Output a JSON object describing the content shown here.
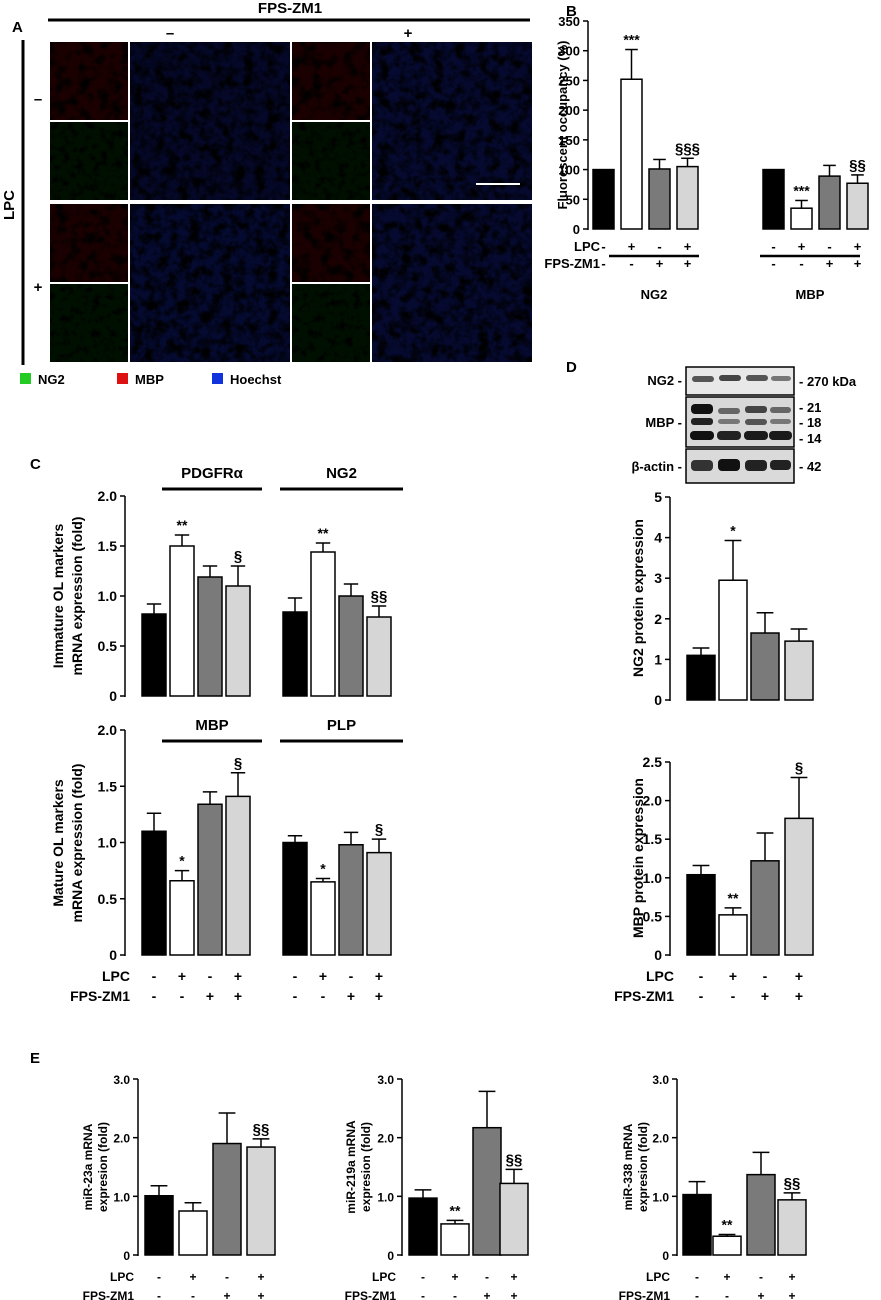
{
  "colors": {
    "g1": "#000000",
    "g2": "#ffffff",
    "g3": "#7a7a7a",
    "g4": "#d6d6d6"
  },
  "conditions": {
    "lpc_label": "LPC",
    "fps_label": "FPS-ZM1",
    "lpc": [
      "-",
      "+",
      "-",
      "+"
    ],
    "fps": [
      "-",
      "-",
      "+",
      "+"
    ]
  },
  "panelA": {
    "letter": "A",
    "treatment": "FPS-ZM1",
    "minus": "–",
    "plus": "+",
    "row_group": "LPC",
    "row_minus": "–",
    "row_plus": "+",
    "legend": [
      {
        "label": "NG2",
        "color": "#22cc22"
      },
      {
        "label": "MBP",
        "color": "#dd1111"
      },
      {
        "label": "Hoechst",
        "color": "#1133dd"
      }
    ]
  },
  "panelB": {
    "letter": "B"
  },
  "panelC": {
    "letter": "C"
  },
  "panelD": {
    "letter": "D",
    "blot_rows": [
      {
        "label": "NG2 -"
      },
      {
        "label": "MBP -"
      },
      {
        "label": "β-actin -"
      }
    ],
    "mw": [
      "- 270 kDa",
      "- 21",
      "- 18",
      "- 14",
      "- 42"
    ]
  },
  "panelE": {
    "letter": "E"
  },
  "chart_data": [
    {
      "id": "B",
      "type": "bar",
      "ylabel": "Fluorescent occupancy (%)",
      "ylim": [
        0,
        350
      ],
      "yticks": [
        "0",
        "50",
        "100",
        "150",
        "200",
        "250",
        "300",
        "350"
      ],
      "groups": [
        {
          "name": "NG2",
          "values": [
            100,
            252,
            101,
            105
          ],
          "errors": [
            0,
            50,
            16,
            14
          ],
          "marks": [
            "",
            "***",
            "",
            "§§§"
          ]
        },
        {
          "name": "MBP",
          "values": [
            100,
            35,
            89,
            77
          ],
          "errors": [
            0,
            13,
            18,
            14
          ],
          "marks": [
            "",
            "***",
            "",
            "§§"
          ]
        }
      ]
    },
    {
      "id": "C1",
      "type": "bar",
      "ylabel": [
        "Immature OL markers",
        "mRNA expression (fold)"
      ],
      "ylim": [
        0,
        2.0
      ],
      "yticks": [
        "0",
        "0.5",
        "1.0",
        "1.5",
        "2.0"
      ],
      "groups": [
        {
          "name": "PDGFRα",
          "values": [
            0.82,
            1.5,
            1.19,
            1.1
          ],
          "errors": [
            0.1,
            0.11,
            0.11,
            0.2
          ],
          "marks": [
            "",
            "**",
            "",
            "§"
          ]
        },
        {
          "name": "NG2",
          "values": [
            0.84,
            1.44,
            1.0,
            0.79
          ],
          "errors": [
            0.14,
            0.09,
            0.12,
            0.11
          ],
          "marks": [
            "",
            "**",
            "",
            "§§"
          ]
        }
      ]
    },
    {
      "id": "C2",
      "type": "bar",
      "ylabel": [
        "Mature OL markers",
        "mRNA expression (fold)"
      ],
      "ylim": [
        0,
        2.0
      ],
      "yticks": [
        "0",
        "0.5",
        "1.0",
        "1.5",
        "2.0"
      ],
      "groups": [
        {
          "name": "MBP",
          "values": [
            1.1,
            0.66,
            1.34,
            1.41
          ],
          "errors": [
            0.16,
            0.09,
            0.11,
            0.21
          ],
          "marks": [
            "",
            "*",
            "",
            "§"
          ]
        },
        {
          "name": "PLP",
          "values": [
            1.0,
            0.65,
            0.98,
            0.91
          ],
          "errors": [
            0.06,
            0.03,
            0.11,
            0.12
          ],
          "marks": [
            "",
            "*",
            "",
            "§"
          ]
        }
      ]
    },
    {
      "id": "D1",
      "type": "bar",
      "ylabel": "NG2 protein expression",
      "ylim": [
        0,
        5
      ],
      "yticks": [
        "0",
        "1",
        "2",
        "3",
        "4",
        "5"
      ],
      "groups": [
        {
          "name": "",
          "values": [
            1.1,
            2.95,
            1.65,
            1.45
          ],
          "errors": [
            0.18,
            0.98,
            0.5,
            0.3
          ],
          "marks": [
            "",
            "*",
            "",
            ""
          ]
        }
      ]
    },
    {
      "id": "D2",
      "type": "bar",
      "ylabel": "MBP protein expression",
      "ylim": [
        0,
        2.5
      ],
      "yticks": [
        "0",
        "0.5",
        "1.0",
        "1.5",
        "2.0",
        "2.5"
      ],
      "groups": [
        {
          "name": "",
          "values": [
            1.04,
            0.52,
            1.22,
            1.77
          ],
          "errors": [
            0.12,
            0.09,
            0.36,
            0.53
          ],
          "marks": [
            "",
            "**",
            "",
            "§"
          ]
        }
      ]
    },
    {
      "id": "E1",
      "type": "bar",
      "ylabel": [
        "miR-23a mRNA",
        "expresion (fold)"
      ],
      "ylim": [
        0,
        3.0
      ],
      "yticks": [
        "0",
        "1.0",
        "2.0",
        "3.0"
      ],
      "groups": [
        {
          "name": "",
          "values": [
            1.01,
            0.75,
            1.9,
            1.84
          ],
          "errors": [
            0.17,
            0.14,
            0.52,
            0.14
          ],
          "marks": [
            "",
            "",
            "",
            "§§"
          ]
        }
      ]
    },
    {
      "id": "E2",
      "type": "bar",
      "ylabel": [
        "miR-219a mRNA",
        "expresion (fold)"
      ],
      "ylim": [
        0,
        3.0
      ],
      "yticks": [
        "0",
        "1.0",
        "2.0",
        "3.0"
      ],
      "groups": [
        {
          "name": "",
          "values": [
            0.97,
            0.53,
            2.17,
            1.22
          ],
          "errors": [
            0.14,
            0.06,
            0.62,
            0.24
          ],
          "marks": [
            "",
            "**",
            "",
            "§§"
          ]
        }
      ]
    },
    {
      "id": "E3",
      "type": "bar",
      "ylabel": [
        "miR-338 mRNA",
        "expresion (fold)"
      ],
      "ylim": [
        0,
        3.0
      ],
      "yticks": [
        "0",
        "1.0",
        "2.0",
        "3.0"
      ],
      "groups": [
        {
          "name": "",
          "values": [
            1.03,
            0.32,
            1.37,
            0.94
          ],
          "errors": [
            0.22,
            0.03,
            0.38,
            0.12
          ],
          "marks": [
            "",
            "**",
            "",
            "§§"
          ]
        }
      ]
    }
  ]
}
